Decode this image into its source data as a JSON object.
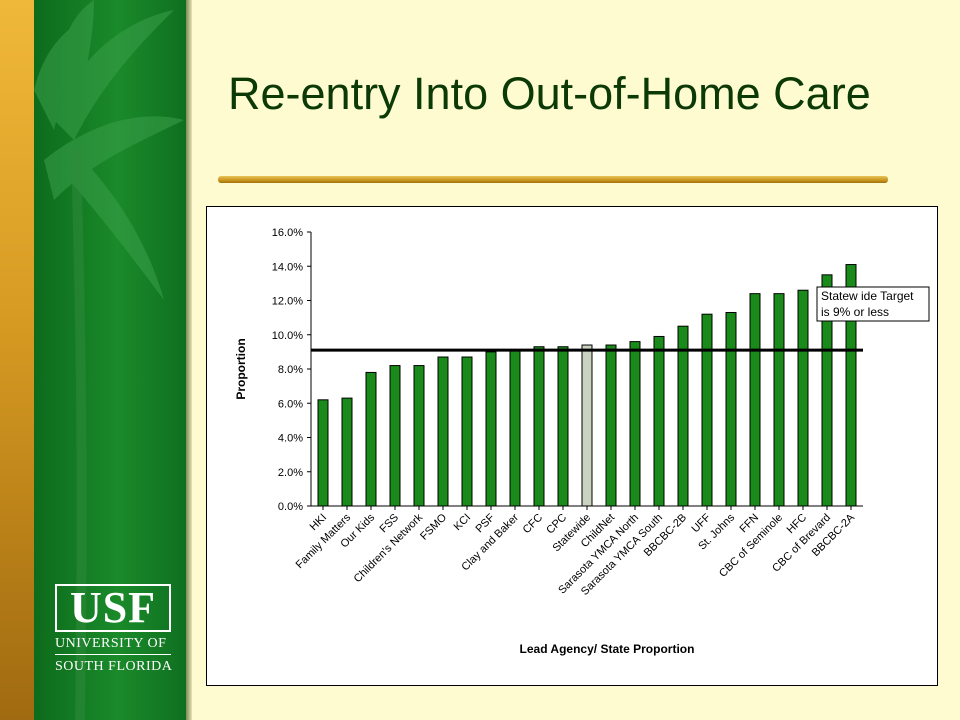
{
  "slide": {
    "title": "Re-entry Into Out-of-Home Care"
  },
  "logo": {
    "mark": "USF",
    "line1": "UNIVERSITY OF",
    "line2": "SOUTH FLORIDA"
  },
  "colors": {
    "bar": "#1a8a1a",
    "highlight_bar": "#c9d3c0",
    "target_line": "#000000",
    "title": "#0b3a06"
  },
  "chart_data": {
    "type": "bar",
    "title": "",
    "xlabel": "Lead Agency/ State Proportion",
    "ylabel": "Proportion",
    "ylim": [
      0,
      16
    ],
    "yticks": [
      "0.0%",
      "2.0%",
      "4.0%",
      "6.0%",
      "8.0%",
      "10.0%",
      "12.0%",
      "14.0%",
      "16.0%"
    ],
    "grid": false,
    "categories": [
      "HKI",
      "Family Matters",
      "Our Kids",
      "FSS",
      "Children's Network",
      "FSMO",
      "KCI",
      "PSF",
      "Clay and Baker",
      "CFC",
      "CPC",
      "Statewide",
      "ChildNet",
      "Sarasota YMCA North",
      "Sarasota YMCA South",
      "BBCBC-2B",
      "UFF",
      "St. Johns",
      "FFN",
      "CBC of Seminole",
      "HFC",
      "CBC of Brevard",
      "BBCBC-2A"
    ],
    "values": [
      6.2,
      6.3,
      7.8,
      8.2,
      8.2,
      8.7,
      8.7,
      9.0,
      9.1,
      9.3,
      9.3,
      9.4,
      9.4,
      9.6,
      9.9,
      10.5,
      11.2,
      11.3,
      12.4,
      12.4,
      12.6,
      13.5,
      14.1
    ],
    "highlight": "Statewide",
    "target_value": 9.1,
    "annotation": {
      "line1": "Statew ide Target",
      "line2": "is 9% or less"
    }
  }
}
